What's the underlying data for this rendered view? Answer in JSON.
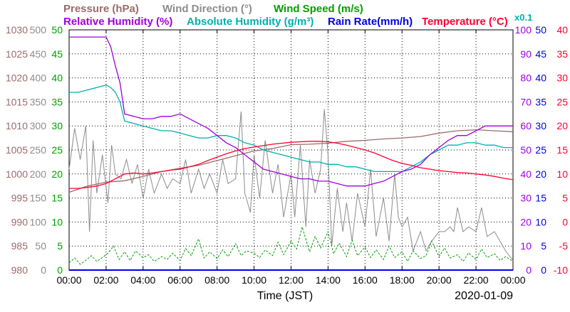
{
  "chart_data": {
    "type": "line",
    "date_label": "2020-01-09",
    "x_axis": {
      "label": "Time (JST)",
      "range": [
        "00:00",
        "24:00"
      ],
      "ticks": [
        "00:00",
        "02:00",
        "04:00",
        "06:00",
        "08:00",
        "10:00",
        "12:00",
        "14:00",
        "16:00",
        "18:00",
        "20:00",
        "22:00",
        "00:00"
      ]
    },
    "legend": {
      "row1": [
        {
          "label": "Pressure (hPa)",
          "color": "#9c6b6b"
        },
        {
          "label": "Wind Direction (°)",
          "color": "#8c8c8c"
        },
        {
          "label": "Wind Speed (m/s)",
          "color": "#00a000"
        }
      ],
      "row2": [
        {
          "label": "Relative Humidity (%)",
          "color": "#a000e0"
        },
        {
          "label": "Absolute Humidity (g/m³)",
          "color": "#00b0b0"
        },
        {
          "label": "Rain Rate(mm/h)",
          "color": "#0000e0"
        },
        {
          "label": "Temperature (°C)",
          "color": "#ff0030"
        }
      ],
      "ah_scale_note": "x0.1"
    },
    "y_axes": [
      {
        "id": "pressure",
        "side": "left",
        "color": "#9c6b6b",
        "range": [
          980,
          1030
        ],
        "ticks": [
          "1030",
          "1025",
          "1020",
          "1015",
          "1010",
          "1005",
          "1000",
          "995",
          "990",
          "985",
          "980"
        ]
      },
      {
        "id": "wind_dir",
        "side": "left",
        "color": "#8c8c8c",
        "range": [
          0,
          500
        ],
        "ticks": [
          "500",
          "450",
          "400",
          "350",
          "300",
          "250",
          "200",
          "150",
          "100",
          "50",
          "0"
        ]
      },
      {
        "id": "wind_speed",
        "side": "left",
        "color": "#00a000",
        "range": [
          0,
          50
        ],
        "ticks": [
          "50",
          "45",
          "40",
          "35",
          "30",
          "25",
          "20",
          "15",
          "10",
          "5",
          "0"
        ]
      },
      {
        "id": "humidity",
        "side": "right",
        "color": "#a000e0",
        "range": [
          0,
          100
        ],
        "ticks": [
          "100",
          "90",
          "80",
          "70",
          "60",
          "50",
          "40",
          "30",
          "20",
          "10",
          "0"
        ]
      },
      {
        "id": "rain",
        "side": "right",
        "color": "#0000e0",
        "range": [
          0,
          50
        ],
        "ticks": [
          "50",
          "45",
          "40",
          "35",
          "30",
          "25",
          "20",
          "15",
          "10",
          "5",
          "0"
        ]
      },
      {
        "id": "temperature",
        "side": "right",
        "color": "#ff0030",
        "range": [
          -10,
          40
        ],
        "ticks": [
          "40",
          "35",
          "30",
          "25",
          "20",
          "15",
          "10",
          "5",
          "0",
          "-5",
          "-10"
        ]
      }
    ],
    "grid": true,
    "series": [
      {
        "name": "Pressure",
        "axis": "pressure",
        "color": "#9c6b6b",
        "unit": "hPa",
        "x": [
          0,
          1,
          2,
          3,
          4,
          5,
          6,
          7,
          8,
          9,
          10,
          11,
          12,
          13,
          14,
          15,
          16,
          17,
          18,
          19,
          20,
          21,
          22,
          23,
          24
        ],
        "y": [
          996.2,
          997.5,
          998.3,
          998.6,
          999.5,
          1000.5,
          1001.2,
          1001.8,
          1002.8,
          1003.8,
          1004.8,
          1005.3,
          1006.1,
          1006.2,
          1006.4,
          1006.8,
          1007.0,
          1007.3,
          1007.5,
          1007.8,
          1008.5,
          1009.0,
          1009.2,
          1009.0,
          1008.8
        ]
      },
      {
        "name": "Relative Humidity",
        "axis": "humidity",
        "color": "#a000e0",
        "unit": "%",
        "x": [
          0,
          0.5,
          1,
          1.5,
          2,
          2.25,
          2.5,
          2.75,
          3,
          3.5,
          4,
          4.5,
          5,
          5.5,
          6,
          6.5,
          7,
          7.5,
          8,
          8.5,
          9,
          9.5,
          10,
          10.5,
          11,
          11.5,
          12,
          12.5,
          13,
          13.5,
          14,
          14.5,
          15,
          15.5,
          16,
          16.5,
          17,
          17.5,
          18,
          18.5,
          19,
          19.5,
          20,
          20.5,
          21,
          21.5,
          22,
          22.5,
          23,
          23.5,
          24
        ],
        "y": [
          97,
          97,
          97,
          97,
          97,
          93,
          85,
          78,
          65,
          64,
          63,
          63,
          64,
          64,
          65,
          63,
          61,
          59,
          56,
          53,
          51,
          48,
          45,
          42,
          41,
          40,
          39,
          38,
          38,
          37,
          37,
          36,
          35,
          35,
          35,
          36,
          37,
          39,
          41,
          42,
          44,
          48,
          51,
          54,
          56,
          56,
          58,
          60,
          60,
          60,
          60
        ]
      },
      {
        "name": "Absolute Humidity",
        "axis": "humidity",
        "color": "#00b0b0",
        "unit": "g/m³ x0.1",
        "x": [
          0,
          0.5,
          1,
          1.5,
          2,
          2.25,
          2.5,
          2.75,
          3,
          3.5,
          4,
          4.5,
          5,
          5.5,
          6,
          6.5,
          7,
          7.5,
          8,
          8.5,
          9,
          9.5,
          10,
          10.5,
          11,
          11.5,
          12,
          12.5,
          13,
          13.5,
          14,
          14.5,
          15,
          15.5,
          16,
          16.5,
          17,
          17.5,
          18,
          18.5,
          19,
          19.5,
          20,
          20.5,
          21,
          21.5,
          22,
          22.5,
          23,
          23.5,
          24
        ],
        "y": [
          74,
          74,
          75,
          76,
          77,
          76,
          74,
          70,
          62,
          61,
          60,
          59,
          58,
          58,
          57,
          56,
          55,
          55,
          56,
          56,
          55,
          53,
          52,
          50,
          49,
          48,
          47,
          46,
          45,
          45,
          44,
          44,
          43,
          43,
          42,
          41,
          41,
          41,
          41,
          43,
          45,
          48,
          50,
          52,
          52,
          53,
          53,
          52,
          52,
          51,
          51
        ]
      },
      {
        "name": "Temperature",
        "axis": "temperature",
        "color": "#ff0030",
        "unit": "°C",
        "x": [
          0,
          0.5,
          1,
          1.5,
          2,
          2.5,
          3,
          3.5,
          4,
          4.5,
          5,
          5.5,
          6,
          6.5,
          7,
          7.5,
          8,
          8.5,
          9,
          9.5,
          10,
          10.5,
          11,
          11.5,
          12,
          12.5,
          13,
          13.5,
          14,
          14.5,
          15,
          15.5,
          16,
          16.5,
          17,
          17.5,
          18,
          18.5,
          19,
          19.5,
          20,
          20.5,
          21,
          21.5,
          22,
          22.5,
          23,
          23.5,
          24
        ],
        "y": [
          7.0,
          7.0,
          7.2,
          7.5,
          8.0,
          9.0,
          10.0,
          10.2,
          10.0,
          10.2,
          10.5,
          10.8,
          11.0,
          11.5,
          12.0,
          12.8,
          13.5,
          14.2,
          14.8,
          15.3,
          15.6,
          15.9,
          16.2,
          16.4,
          16.6,
          16.7,
          16.8,
          16.8,
          16.7,
          16.4,
          16.0,
          15.5,
          15.0,
          14.4,
          13.6,
          12.8,
          12.2,
          11.8,
          11.3,
          11.0,
          10.7,
          10.5,
          10.3,
          10.2,
          10.0,
          9.8,
          9.5,
          9.1,
          8.8
        ]
      },
      {
        "name": "Wind Direction",
        "axis": "wind_dir",
        "color": "#8c8c8c",
        "unit": "°",
        "x": [
          0,
          0.3,
          0.6,
          0.9,
          1.1,
          1.3,
          1.5,
          1.8,
          2.1,
          2.3,
          2.5,
          2.8,
          3.1,
          3.4,
          3.7,
          4.0,
          4.3,
          4.6,
          5.0,
          5.3,
          5.6,
          6.0,
          6.3,
          6.6,
          7.0,
          7.3,
          7.6,
          8.0,
          8.3,
          8.6,
          9.0,
          9.3,
          9.5,
          9.8,
          10.0,
          10.3,
          10.6,
          11.0,
          11.3,
          11.6,
          12.0,
          12.2,
          12.5,
          12.8,
          13.0,
          13.3,
          13.6,
          13.8,
          14.0,
          14.2,
          14.5,
          14.8,
          15.0,
          15.3,
          15.6,
          16.0,
          16.3,
          16.6,
          17.0,
          17.3,
          17.6,
          17.8,
          18.0,
          18.3,
          18.6,
          19.0,
          19.3,
          19.6,
          20.0,
          20.3,
          20.6,
          20.8,
          21.0,
          21.3,
          21.6,
          22.0,
          22.3,
          22.6,
          23.0,
          23.3,
          23.6,
          24.0
        ],
        "y": [
          210,
          295,
          230,
          300,
          80,
          270,
          160,
          240,
          140,
          260,
          200,
          190,
          230,
          180,
          220,
          150,
          210,
          160,
          200,
          170,
          190,
          180,
          230,
          160,
          210,
          170,
          200,
          160,
          230,
          180,
          190,
          330,
          160,
          120,
          240,
          150,
          270,
          160,
          220,
          110,
          200,
          110,
          260,
          90,
          230,
          160,
          210,
          335,
          240,
          50,
          170,
          80,
          140,
          60,
          160,
          90,
          210,
          70,
          150,
          60,
          200,
          110,
          90,
          110,
          40,
          80,
          40,
          60,
          80,
          80,
          90,
          80,
          130,
          80,
          90,
          80,
          130,
          70,
          80,
          60,
          40,
          20
        ]
      },
      {
        "name": "Wind Speed",
        "axis": "wind_speed",
        "color": "#00a000",
        "unit": "m/s",
        "x": [
          0,
          0.3,
          0.6,
          0.9,
          1.2,
          1.5,
          1.8,
          2.1,
          2.4,
          2.7,
          3.0,
          3.3,
          3.6,
          4.0,
          4.3,
          4.6,
          5.0,
          5.3,
          5.6,
          6.0,
          6.3,
          6.6,
          7.0,
          7.3,
          7.6,
          8.0,
          8.3,
          8.6,
          9.0,
          9.3,
          9.6,
          10.0,
          10.3,
          10.6,
          11.0,
          11.3,
          11.6,
          12.0,
          12.3,
          12.6,
          13.0,
          13.3,
          13.6,
          14.0,
          14.3,
          14.6,
          15.0,
          15.3,
          15.6,
          16.0,
          16.3,
          16.6,
          17.0,
          17.3,
          17.6,
          18.0,
          18.3,
          18.6,
          19.0,
          19.3,
          19.6,
          20.0,
          20.3,
          20.6,
          21.0,
          21.3,
          21.6,
          22.0,
          22.3,
          22.6,
          23.0,
          23.3,
          23.6,
          24.0
        ],
        "y": [
          1.5,
          2.5,
          1.2,
          2.0,
          3.0,
          1.8,
          2.6,
          3.5,
          5.0,
          2.2,
          3.8,
          2.0,
          4.0,
          2.6,
          3.2,
          1.8,
          2.8,
          2.2,
          3.5,
          2.0,
          4.5,
          3.0,
          6.5,
          2.5,
          3.8,
          2.4,
          4.2,
          2.8,
          5.5,
          3.0,
          4.0,
          3.5,
          2.6,
          4.2,
          3.0,
          5.8,
          3.2,
          6.0,
          4.4,
          9.0,
          3.8,
          7.0,
          4.6,
          8.0,
          3.4,
          5.6,
          2.8,
          6.2,
          3.0,
          4.8,
          2.6,
          4.2,
          2.2,
          5.0,
          2.6,
          3.8,
          1.8,
          4.0,
          2.4,
          3.0,
          6.0,
          2.8,
          4.6,
          2.5,
          3.2,
          1.8,
          3.6,
          2.2,
          4.4,
          2.6,
          3.4,
          2.0,
          2.8,
          1.8
        ]
      },
      {
        "name": "Rain Rate",
        "axis": "rain",
        "color": "#0000e0",
        "unit": "mm/h",
        "x": [
          0,
          24
        ],
        "y": [
          0,
          0
        ]
      }
    ]
  }
}
